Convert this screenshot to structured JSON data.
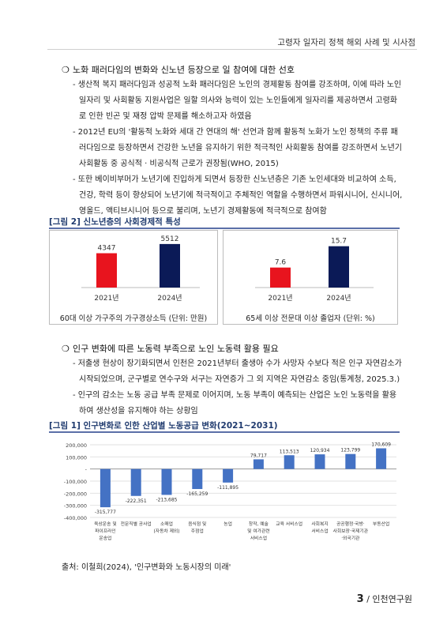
{
  "header": {
    "title": "고령자 일자리 정책 해외 사례 및 시사점"
  },
  "section1": {
    "heading": "노화 패러다임의 변화와 신노년 등장으로 일 참여에 대한 선호",
    "bullets": [
      "- 생산적 복지 패러다임과 성공적 노화 패러다임은 노인의 경제활동 참여를 강조하며, 이에 따라 노인 일자리 및 사회활동 지원사업은 일할 의사와 능력이 있는 노인들에게 일자리를 제공하면서 고령화로 인한 빈곤 및 재정 압박 문제를 해소하고자 하였음",
      "- 2012년 EU의 '활동적 노화와 세대 간 연대의 해' 선언과 함께 활동적 노화가 노인 정책의 주류 패러다임으로 등장하면서 건강한 노년을 유지하기 위한 적극적인 사회활동 참여를 강조하면서 노년기 사회활동 중 공식적 · 비공식적 근로가 권장됨(WHO, 2015)",
      "- 또한 베이비부머가 노년기에 진입하게 되면서 등장한 신노년층은 기존 노인세대와 비교하여 소득, 건강, 학력 등이 향상되어 노년기에 적극적이고 주체적인 역할을 수행하면서 파워시니어, 신시니어, 영올드, 액티브시니어 등으로 불리며, 노년기 경제활동에 적극적으로 참여함"
    ]
  },
  "figure2": {
    "title": "[그림 2] 신노년층의 사회경제적 특성",
    "left_caption": "60대 이상 가구주의 가구경상소득 (단위: 만원)",
    "right_caption": "65세 이상 전문대 이상 졸업자 (단위: %)"
  },
  "section2": {
    "heading": "인구 변화에 따른 노동력 부족으로 노인 노동력 활용 필요",
    "bullets": [
      "- 저출생 현상이 장기화되면서 인천은 2021년부터 출생아 수가 사망자 수보다 적은 인구 자연감소가 시작되었으며, 군구별로 연수구와 서구는 자연증가 그 외 지역은 자연감소 중임(통계청, 2025.3.)",
      "- 인구의 감소는 노동 공급 부족 문제로 이어지며, 노동 부족이 예측되는 산업은 노인 노동력을 활용하여 생산성을 유지해야 하는 상황임"
    ]
  },
  "figure1": {
    "title": "[그림 1] 인구변화로 인한 산업별 노동공급 변화(2021~2031)"
  },
  "source": "출처: 이철희(2024), '인구변화와 노동시장의 미래'",
  "footer": {
    "page": "3",
    "org": "/ 인천연구원"
  },
  "chart_data": [
    {
      "type": "bar",
      "categories": [
        "2021년",
        "2024년"
      ],
      "values": [
        4347,
        5512
      ],
      "colors": [
        "#e8141e",
        "#0b1a57"
      ],
      "title": "",
      "xlabel": "60대 이상 가구주의 가구경상소득 (단위: 만원)",
      "ylabel": "",
      "ylim": [
        0,
        6000
      ],
      "grid": false
    },
    {
      "type": "bar",
      "categories": [
        "2021년",
        "2024년"
      ],
      "values": [
        7.6,
        15.7
      ],
      "value_labels": [
        "7.6",
        "15.7"
      ],
      "colors": [
        "#e8141e",
        "#0b1a57"
      ],
      "title": "",
      "xlabel": "65세 이상 전문대 이상 졸업자 (단위: %)",
      "ylabel": "",
      "ylim": [
        0,
        18
      ],
      "grid": false
    },
    {
      "type": "bar",
      "categories": [
        "육상운송 및 파이프라인 운송업",
        "전문직별 공사업",
        "소매업 (자동차 제외)",
        "음식점 및 주점업",
        "농업",
        "창작, 예술 및 여가관련 서비스업",
        "교육 서비스업",
        "사회복지 서비스업",
        "공공행정·국방·사회보장·국제기관·외국기관",
        "부동산업"
      ],
      "category_lines": [
        [
          "육상운송 및",
          "파이프라인",
          "운송업"
        ],
        [
          "전문직별 공사업"
        ],
        [
          "소매업",
          "(자동차 제외)"
        ],
        [
          "음식점 및",
          "주점업"
        ],
        [
          "농업"
        ],
        [
          "창작, 예술",
          "및 여가관련",
          "서비스업"
        ],
        [
          "교육 서비스업"
        ],
        [
          "사회복지",
          "서비스업"
        ],
        [
          "공공행정·국방·",
          "사회보장·국제기관",
          "·외국기관"
        ],
        [
          "부동산업"
        ]
      ],
      "values": [
        -315777,
        -222351,
        -213685,
        -165259,
        -111895,
        79717,
        113513,
        120934,
        123799,
        170609
      ],
      "value_labels": [
        "-315,777",
        "-222,351",
        "-213,685",
        "-165,259",
        "-111,895",
        "79,717",
        "113,513",
        "120,934",
        "123,799",
        "170,609"
      ],
      "yticks": [
        "200,000",
        "100,000",
        "-",
        "-100,000",
        "-200,000",
        "-300,000",
        "-400,000"
      ],
      "ytick_values": [
        200000,
        100000,
        0,
        -100000,
        -200000,
        -300000,
        -400000
      ],
      "ylim": [
        -400000,
        200000
      ],
      "color": "#4472c4",
      "title": "",
      "xlabel": "",
      "ylabel": "",
      "grid": true
    }
  ]
}
